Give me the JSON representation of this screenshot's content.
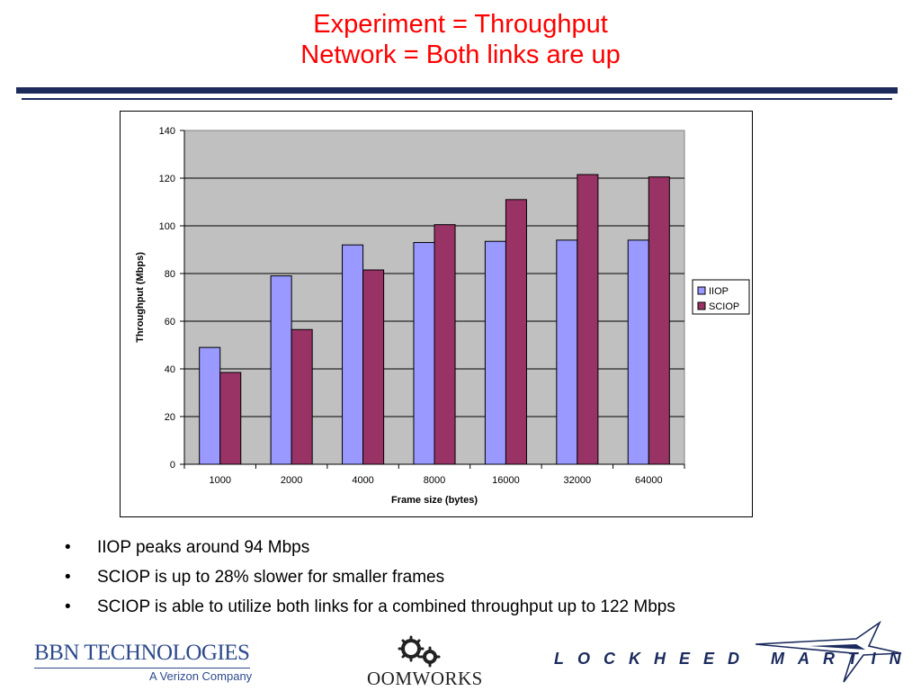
{
  "title": {
    "line1": "Experiment = Throughput",
    "line2": "Network = Both links are up"
  },
  "colors": {
    "title": "#ff0000",
    "rule": "#1c2a5c",
    "plot_background": "#c0c0c0",
    "series_iiop": "#9999ff",
    "series_sciop": "#993366"
  },
  "chart_data": {
    "type": "bar",
    "title": "",
    "xlabel": "Frame size (bytes)",
    "ylabel": "Throughput (Mbps)",
    "categories": [
      "1000",
      "2000",
      "4000",
      "8000",
      "16000",
      "32000",
      "64000"
    ],
    "series": [
      {
        "name": "IIOP",
        "values": [
          49,
          79,
          92,
          93,
          93.5,
          94,
          94
        ]
      },
      {
        "name": "SCIOP",
        "values": [
          38.5,
          56.5,
          81.5,
          100.5,
          111,
          121.5,
          120.5
        ]
      }
    ],
    "ylim": [
      0,
      140
    ],
    "yticks": [
      "0",
      "20",
      "40",
      "60",
      "80",
      "100",
      "120",
      "140"
    ],
    "grid": true,
    "legend": "right"
  },
  "bullets": [
    "IIOP peaks around 94 Mbps",
    "SCIOP is up to 28% slower for smaller frames",
    "SCIOP is able to utilize both links for a combined throughput up to 122 Mbps"
  ],
  "bullet_symbol": "•",
  "logos": {
    "bbn": {
      "name": "BBN TECHNOLOGIES",
      "tagline": "A Verizon Company"
    },
    "oomworks": {
      "name": "OOMWORKS",
      "icon": "gears-icon"
    },
    "lockheed": {
      "name": "LOCKHEED MARTIN",
      "icon": "star-icon"
    }
  }
}
